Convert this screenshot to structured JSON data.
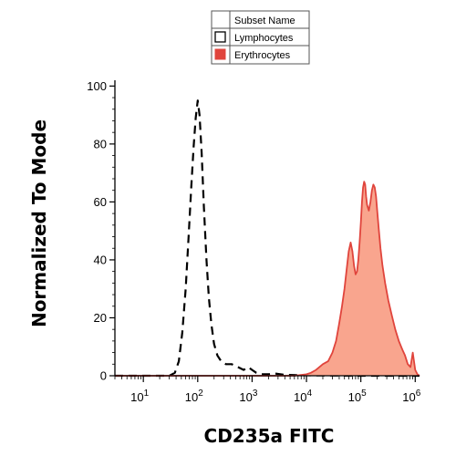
{
  "chart_data": {
    "type": "area",
    "title": "",
    "xlabel": "CD235a FITC",
    "ylabel": "Normalized To Mode",
    "x_scale": "log",
    "xlim": [
      3,
      1200000
    ],
    "ylim": [
      0,
      102
    ],
    "x_ticks": [
      {
        "value": 10,
        "base": "10",
        "exp": "1"
      },
      {
        "value": 100,
        "base": "10",
        "exp": "2"
      },
      {
        "value": 1000,
        "base": "10",
        "exp": "3"
      },
      {
        "value": 10000,
        "base": "10",
        "exp": "4"
      },
      {
        "value": 100000,
        "base": "10",
        "exp": "5"
      },
      {
        "value": 1000000,
        "base": "10",
        "exp": "6"
      }
    ],
    "y_ticks": [
      0,
      20,
      40,
      60,
      80,
      100
    ],
    "grid": false,
    "legend": {
      "position": "top-center",
      "header": "Subset Name",
      "entries": [
        "Lymphocytes",
        "Erythrocytes"
      ]
    },
    "series": [
      {
        "name": "Lymphocytes",
        "style": "dashed-outline",
        "color": "#000000",
        "x": [
          3,
          30,
          38,
          45,
          52,
          60,
          68,
          76,
          84,
          92,
          100,
          108,
          118,
          130,
          145,
          160,
          178,
          200,
          230,
          270,
          330,
          420,
          550,
          700,
          850,
          1000,
          1200,
          1500,
          2000,
          2600,
          4000,
          8000,
          20000,
          100000,
          1200000
        ],
        "y": [
          0,
          0,
          1,
          5,
          15,
          30,
          48,
          65,
          79,
          89,
          95,
          90,
          77,
          58,
          40,
          27,
          18,
          11,
          7,
          5,
          4,
          4,
          3,
          2,
          3,
          2,
          1,
          0.5,
          0.5,
          0.8,
          0.3,
          0.2,
          0.1,
          0,
          0
        ]
      },
      {
        "name": "Erythrocytes",
        "style": "filled",
        "color": "#e0443c",
        "fill": "#f9a58e",
        "x": [
          3,
          3000,
          6000,
          10000,
          12000,
          15000,
          20000,
          25000,
          30000,
          35000,
          40000,
          45000,
          50000,
          55000,
          60000,
          65000,
          70000,
          75000,
          80000,
          85000,
          90000,
          95000,
          100000,
          105000,
          110000,
          115000,
          120000,
          125000,
          130000,
          140000,
          150000,
          160000,
          170000,
          180000,
          190000,
          200000,
          215000,
          230000,
          250000,
          280000,
          320000,
          370000,
          430000,
          500000,
          580000,
          650000,
          730000,
          820000,
          900000,
          1000000,
          1100000,
          1200000
        ],
        "y": [
          0,
          0,
          0,
          0.5,
          1,
          2,
          4,
          5,
          8,
          12,
          18,
          24,
          30,
          37,
          43,
          46,
          43,
          38,
          35,
          36,
          40,
          46,
          53,
          60,
          65,
          67,
          66,
          62,
          59,
          57,
          60,
          64,
          66,
          65,
          62,
          57,
          50,
          44,
          38,
          32,
          26,
          21,
          16,
          12,
          9,
          7,
          4,
          3,
          8,
          2,
          0.5,
          0
        ]
      }
    ]
  }
}
